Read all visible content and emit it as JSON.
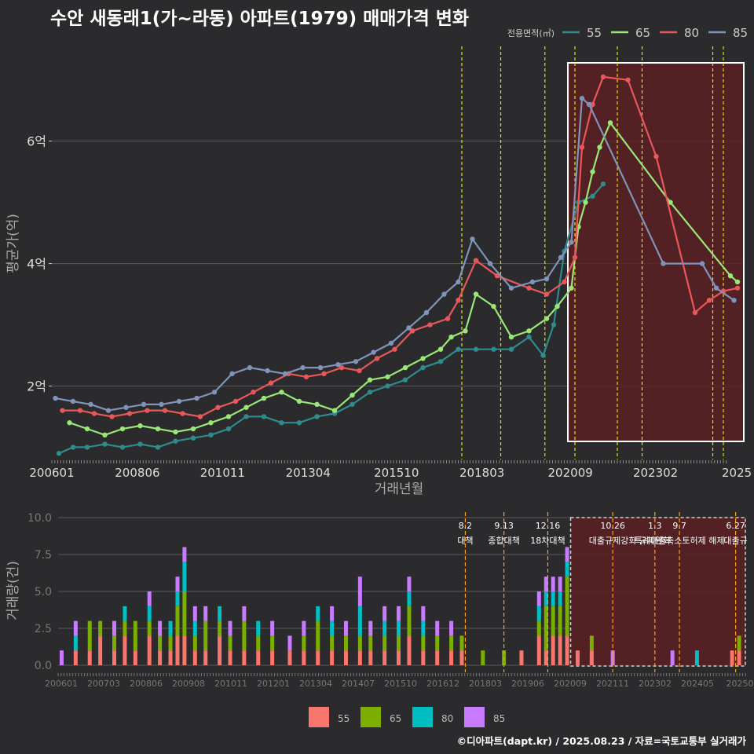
{
  "title": "수안 새동래1(가~라동) 아파트(1979) 매매가격 변화",
  "footer": "©디아파트(dapt.kr) / 2025.08.23 / 자료=국토교통부 실거래가",
  "colors": {
    "background": "#2b2b2d",
    "grid": "#5a5a5a",
    "event_line": "#e5e000",
    "event_line_bottom": "#ff9f1a",
    "highlight_fill": "#5a1e22",
    "highlight_border": "#ffffff"
  },
  "chart_data": [
    {
      "type": "line",
      "title": "평균가격 추이",
      "xlabel": "거래년월",
      "ylabel": "평균가(억)",
      "x_ticks": [
        "200601",
        "200806",
        "201011",
        "201304",
        "201510",
        "201803",
        "202009",
        "202302",
        "2025"
      ],
      "xlim": [
        2006.0,
        2025.6
      ],
      "ylim": [
        0.8,
        7.6
      ],
      "y_ticks": [
        {
          "v": 2,
          "label": "2억"
        },
        {
          "v": 4,
          "label": "4억"
        },
        {
          "v": 6,
          "label": "6억"
        }
      ],
      "legend_title": "전용면적(㎡)",
      "legend_position": "top-right",
      "event_lines": [
        2017.6,
        2018.7,
        2019.95,
        2020.8,
        2022.0,
        2022.7,
        2024.7,
        2025.0
      ],
      "highlight_x": [
        2020.6,
        2025.6
      ],
      "series": [
        {
          "name": "55",
          "color": "#2e8b8e",
          "x": [
            2006.2,
            2006.6,
            2007.0,
            2007.5,
            2008.0,
            2008.5,
            2009.0,
            2009.5,
            2010.0,
            2010.5,
            2011.0,
            2011.5,
            2012.0,
            2012.5,
            2013.0,
            2013.5,
            2014.0,
            2014.5,
            2015.0,
            2015.5,
            2016.0,
            2016.5,
            2017.0,
            2017.5,
            2018.0,
            2018.5,
            2019.0,
            2019.5,
            2019.9,
            2020.2,
            2020.5,
            2020.9,
            2021.3,
            2021.6
          ],
          "y": [
            0.9,
            1.0,
            1.0,
            1.05,
            1.0,
            1.05,
            1.0,
            1.1,
            1.15,
            1.2,
            1.3,
            1.5,
            1.5,
            1.4,
            1.4,
            1.5,
            1.55,
            1.7,
            1.9,
            2.0,
            2.1,
            2.3,
            2.4,
            2.6,
            2.6,
            2.6,
            2.6,
            2.8,
            2.5,
            3.0,
            4.2,
            5.0,
            5.1,
            5.3
          ]
        },
        {
          "name": "65",
          "color": "#9ae676",
          "x": [
            2006.5,
            2007.0,
            2007.5,
            2008.0,
            2008.5,
            2009.0,
            2009.5,
            2010.0,
            2010.5,
            2011.0,
            2011.5,
            2012.0,
            2012.5,
            2013.0,
            2013.5,
            2014.0,
            2014.5,
            2015.0,
            2015.5,
            2016.0,
            2016.5,
            2017.0,
            2017.3,
            2017.7,
            2018.0,
            2018.5,
            2019.0,
            2019.5,
            2020.0,
            2020.3,
            2020.7,
            2020.9,
            2021.1,
            2021.3,
            2021.5,
            2021.8,
            2023.5,
            2025.2,
            2025.4
          ],
          "y": [
            1.4,
            1.3,
            1.2,
            1.3,
            1.35,
            1.3,
            1.25,
            1.3,
            1.4,
            1.5,
            1.65,
            1.8,
            1.9,
            1.75,
            1.7,
            1.6,
            1.85,
            2.1,
            2.15,
            2.3,
            2.45,
            2.6,
            2.8,
            2.9,
            3.5,
            3.3,
            2.8,
            2.9,
            3.1,
            3.3,
            3.6,
            4.6,
            5.0,
            5.5,
            5.9,
            6.3,
            5.0,
            3.8,
            3.7
          ]
        },
        {
          "name": "80",
          "color": "#e8585a",
          "x": [
            2006.3,
            2006.8,
            2007.2,
            2007.7,
            2008.2,
            2008.7,
            2009.2,
            2009.7,
            2010.2,
            2010.7,
            2011.2,
            2011.7,
            2012.2,
            2012.7,
            2013.2,
            2013.7,
            2014.2,
            2014.7,
            2015.2,
            2015.7,
            2016.2,
            2016.7,
            2017.2,
            2017.5,
            2018.0,
            2018.6,
            2019.5,
            2020.0,
            2020.5,
            2020.8,
            2021.0,
            2021.3,
            2021.6,
            2022.3,
            2023.1,
            2024.2,
            2024.6,
            2025.0,
            2025.4
          ],
          "y": [
            1.6,
            1.6,
            1.55,
            1.5,
            1.55,
            1.6,
            1.6,
            1.55,
            1.5,
            1.65,
            1.75,
            1.9,
            2.05,
            2.2,
            2.15,
            2.2,
            2.3,
            2.25,
            2.45,
            2.6,
            2.9,
            3.0,
            3.1,
            3.4,
            4.05,
            3.8,
            3.6,
            3.5,
            3.7,
            4.1,
            5.9,
            6.6,
            7.05,
            7.0,
            5.75,
            3.2,
            3.4,
            3.55,
            3.6
          ]
        },
        {
          "name": "85",
          "color": "#7f93bb",
          "x": [
            2006.1,
            2006.6,
            2007.1,
            2007.6,
            2008.1,
            2008.6,
            2009.1,
            2009.6,
            2010.1,
            2010.6,
            2011.1,
            2011.6,
            2012.1,
            2012.6,
            2013.1,
            2013.6,
            2014.1,
            2014.6,
            2015.1,
            2015.6,
            2016.1,
            2016.6,
            2017.1,
            2017.5,
            2017.9,
            2018.4,
            2019.0,
            2019.6,
            2020.0,
            2020.4,
            2020.7,
            2021.0,
            2021.2,
            2023.3,
            2024.4,
            2024.8,
            2025.3
          ],
          "y": [
            1.8,
            1.75,
            1.7,
            1.6,
            1.65,
            1.7,
            1.7,
            1.75,
            1.8,
            1.9,
            2.2,
            2.3,
            2.25,
            2.2,
            2.3,
            2.3,
            2.35,
            2.4,
            2.55,
            2.7,
            2.95,
            3.2,
            3.5,
            3.7,
            4.4,
            4.0,
            3.6,
            3.7,
            3.75,
            4.1,
            4.35,
            6.7,
            6.6,
            4.0,
            4.0,
            3.6,
            3.4
          ]
        }
      ]
    },
    {
      "type": "bar",
      "title": "거래량",
      "xlabel": "",
      "ylabel": "거래량(건)",
      "stacked": true,
      "x_ticks": [
        "200601",
        "200703",
        "200806",
        "200908",
        "201011",
        "201201",
        "201304",
        "201407",
        "201510",
        "201612",
        "201803",
        "201906",
        "202009",
        "202111",
        "202302",
        "202405",
        "20250"
      ],
      "xlim": [
        2006.0,
        2025.6
      ],
      "ylim": [
        0,
        10
      ],
      "y_ticks": [
        {
          "v": 0,
          "label": "0.0"
        },
        {
          "v": 2.5,
          "label": "2.5"
        },
        {
          "v": 5,
          "label": "5.0"
        },
        {
          "v": 7.5,
          "label": "7.5"
        },
        {
          "v": 10,
          "label": "10.0"
        }
      ],
      "legend_position": "bottom",
      "series_names": [
        "55",
        "65",
        "80",
        "85"
      ],
      "series_colors": [
        "#f8766d",
        "#7cae00",
        "#00bfc4",
        "#c77cff"
      ],
      "highlight_x": [
        2020.6,
        2025.6
      ],
      "events": [
        {
          "x": 2017.6,
          "date": "8.2",
          "label": "대책"
        },
        {
          "x": 2018.7,
          "date": "9.13",
          "label": "종합대책"
        },
        {
          "x": 2019.95,
          "date": "12.16",
          "label": "18차대책"
        },
        {
          "x": 2021.8,
          "date": "10.26",
          "label": "대출규제강화"
        },
        {
          "x": 2023.0,
          "date": "1.3",
          "label": "규제완화"
        },
        {
          "x": 2023.7,
          "date": "9.7",
          "label": "특례대출축소토허제 해제"
        },
        {
          "x": 2025.3,
          "date": "6.27",
          "label": "대출규"
        }
      ],
      "volume": [
        {
          "x": 2006.1,
          "v": [
            0,
            0,
            0,
            1
          ]
        },
        {
          "x": 2006.5,
          "v": [
            1,
            0,
            1,
            1
          ]
        },
        {
          "x": 2006.9,
          "v": [
            1,
            2,
            0,
            0
          ]
        },
        {
          "x": 2007.2,
          "v": [
            2,
            1,
            0,
            0
          ]
        },
        {
          "x": 2007.6,
          "v": [
            1,
            1,
            0,
            1
          ]
        },
        {
          "x": 2007.9,
          "v": [
            2,
            1,
            1,
            0
          ]
        },
        {
          "x": 2008.2,
          "v": [
            1,
            2,
            0,
            0
          ]
        },
        {
          "x": 2008.6,
          "v": [
            2,
            1,
            1,
            1
          ]
        },
        {
          "x": 2008.9,
          "v": [
            1,
            1,
            0,
            1
          ]
        },
        {
          "x": 2009.2,
          "v": [
            1,
            1,
            1,
            0
          ]
        },
        {
          "x": 2009.4,
          "v": [
            2,
            2,
            1,
            1
          ]
        },
        {
          "x": 2009.6,
          "v": [
            2,
            3,
            2,
            1
          ]
        },
        {
          "x": 2009.9,
          "v": [
            1,
            1,
            1,
            1
          ]
        },
        {
          "x": 2010.2,
          "v": [
            1,
            2,
            0,
            1
          ]
        },
        {
          "x": 2010.6,
          "v": [
            2,
            1,
            1,
            0
          ]
        },
        {
          "x": 2010.9,
          "v": [
            1,
            1,
            0,
            1
          ]
        },
        {
          "x": 2011.3,
          "v": [
            1,
            2,
            0,
            1
          ]
        },
        {
          "x": 2011.7,
          "v": [
            1,
            1,
            1,
            0
          ]
        },
        {
          "x": 2012.1,
          "v": [
            1,
            1,
            0,
            1
          ]
        },
        {
          "x": 2012.6,
          "v": [
            1,
            0,
            0,
            1
          ]
        },
        {
          "x": 2013.0,
          "v": [
            1,
            1,
            0,
            1
          ]
        },
        {
          "x": 2013.4,
          "v": [
            1,
            2,
            1,
            0
          ]
        },
        {
          "x": 2013.8,
          "v": [
            1,
            1,
            1,
            1
          ]
        },
        {
          "x": 2014.2,
          "v": [
            1,
            1,
            0,
            1
          ]
        },
        {
          "x": 2014.6,
          "v": [
            1,
            1,
            2,
            2
          ]
        },
        {
          "x": 2014.9,
          "v": [
            1,
            1,
            0,
            1
          ]
        },
        {
          "x": 2015.3,
          "v": [
            1,
            1,
            1,
            1
          ]
        },
        {
          "x": 2015.7,
          "v": [
            1,
            1,
            1,
            1
          ]
        },
        {
          "x": 2016.0,
          "v": [
            2,
            2,
            1,
            1
          ]
        },
        {
          "x": 2016.4,
          "v": [
            1,
            1,
            1,
            1
          ]
        },
        {
          "x": 2016.8,
          "v": [
            1,
            1,
            0,
            1
          ]
        },
        {
          "x": 2017.2,
          "v": [
            1,
            1,
            0,
            1
          ]
        },
        {
          "x": 2017.5,
          "v": [
            1,
            1,
            0,
            0
          ]
        },
        {
          "x": 2018.1,
          "v": [
            0,
            1,
            0,
            0
          ]
        },
        {
          "x": 2018.7,
          "v": [
            0,
            1,
            0,
            0
          ]
        },
        {
          "x": 2019.2,
          "v": [
            1,
            0,
            0,
            0
          ]
        },
        {
          "x": 2019.7,
          "v": [
            2,
            1,
            1,
            1
          ]
        },
        {
          "x": 2019.9,
          "v": [
            1,
            3,
            1,
            1
          ]
        },
        {
          "x": 2020.1,
          "v": [
            2,
            2,
            1,
            1
          ]
        },
        {
          "x": 2020.3,
          "v": [
            2,
            2,
            1,
            1
          ]
        },
        {
          "x": 2020.5,
          "v": [
            2,
            4,
            1,
            1
          ]
        },
        {
          "x": 2020.8,
          "v": [
            1,
            0,
            0,
            0
          ]
        },
        {
          "x": 2021.2,
          "v": [
            1,
            1,
            0,
            0
          ]
        },
        {
          "x": 2021.8,
          "v": [
            0,
            0,
            0,
            1
          ]
        },
        {
          "x": 2023.5,
          "v": [
            0,
            0,
            0,
            1
          ]
        },
        {
          "x": 2024.2,
          "v": [
            0,
            0,
            1,
            0
          ]
        },
        {
          "x": 2025.2,
          "v": [
            1,
            0,
            0,
            0
          ]
        },
        {
          "x": 2025.4,
          "v": [
            1,
            1,
            0,
            0
          ]
        }
      ]
    }
  ]
}
